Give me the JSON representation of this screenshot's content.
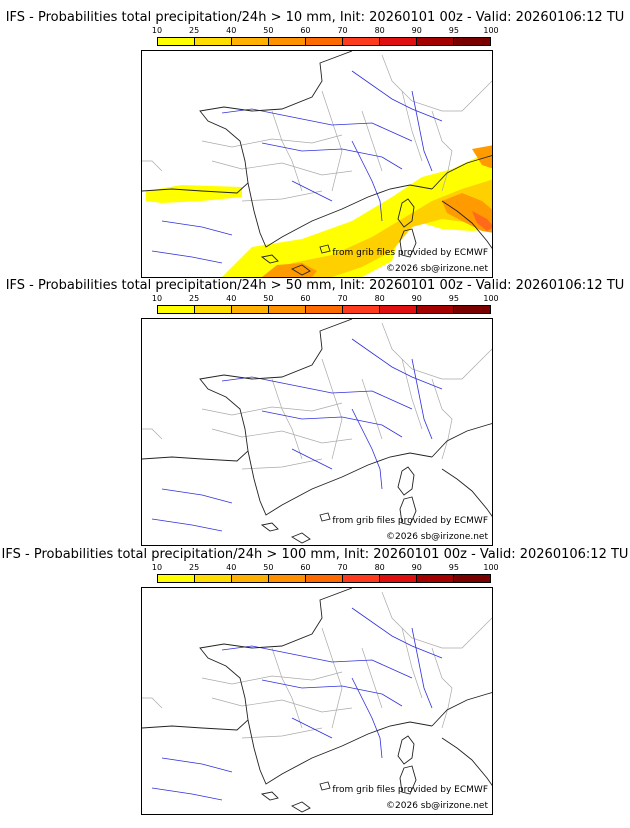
{
  "scale": {
    "ticks": [
      "10",
      "25",
      "40",
      "50",
      "60",
      "70",
      "80",
      "90",
      "95",
      "100"
    ],
    "colors": [
      "#ffff00",
      "#ffdd00",
      "#ffb000",
      "#ff9000",
      "#ff6a00",
      "#ff3b1f",
      "#e01010",
      "#a50000",
      "#7a0000"
    ]
  },
  "panels": [
    {
      "title": "IFS - Probabilities total precipitation/24h > 10 mm, Init: 20260101 00z - Valid: 20260106:12 TU",
      "source_text": "from grib files provided by ECMWF",
      "copyright_text": "©2026 sb@irizone.net",
      "has_precip": true
    },
    {
      "title": "IFS - Probabilities total precipitation/24h > 50 mm, Init: 20260101 00z - Valid: 20260106:12 TU",
      "source_text": "from grib files provided by ECMWF",
      "copyright_text": "©2026 sb@irizone.net",
      "has_precip": false
    },
    {
      "title": "IFS - Probabilities total precipitation/24h > 100 mm, Init: 20260101 00z - Valid: 20260106:12 TU",
      "source_text": "from grib files provided by ECMWF",
      "copyright_text": "©2026 sb@irizone.net",
      "has_precip": false
    }
  ],
  "map_colors": {
    "coastline": "#222222",
    "rivers": "#3030dd",
    "borders": "#aaaaaa",
    "precip_low": "#ffff00",
    "precip_mid": "#ffd000",
    "precip_high": "#ff9a00",
    "precip_peak": "#ff6a1a"
  }
}
